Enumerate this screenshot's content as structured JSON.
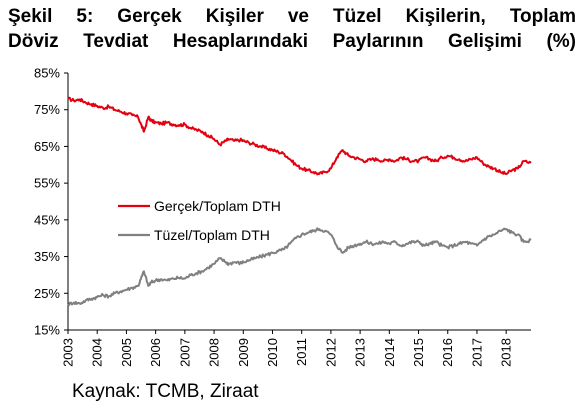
{
  "title_lines": [
    "Şekil 5: Gerçek Kişiler ve Tüzel Kişilerin, Toplam",
    "Döviz Tevdiat Hesaplarındaki Paylarının Gelişimi (%)"
  ],
  "source": "Kaynak: TCMB, Ziraat",
  "chart_data": {
    "type": "line",
    "title": "Şekil 5: Gerçek Kişiler ve Tüzel Kişilerin, Toplam Döviz Tevdiat Hesaplarındaki Paylarının Gelişimi (%)",
    "xlabel": "",
    "ylabel": "",
    "xlim": [
      2003,
      2018.85
    ],
    "ylim": [
      15,
      85
    ],
    "y_ticks": [
      15,
      25,
      35,
      45,
      55,
      65,
      75,
      85
    ],
    "y_tick_labels": [
      "15%",
      "25%",
      "35%",
      "45%",
      "55%",
      "65%",
      "75%",
      "85%"
    ],
    "x_ticks": [
      2003,
      2004,
      2005,
      2006,
      2007,
      2008,
      2009,
      2010,
      2011,
      2012,
      2013,
      2014,
      2015,
      2016,
      2017,
      2018
    ],
    "x_tick_labels": [
      "2003",
      "2004",
      "2005",
      "2006",
      "2007",
      "2008",
      "2009",
      "2010",
      "2011",
      "2012",
      "2013",
      "2014",
      "2015",
      "2016",
      "2017",
      "2018"
    ],
    "grid": false,
    "legend_position": "middle-left",
    "series": [
      {
        "name": "Gerçek/Toplam DTH",
        "color": "#e3000f",
        "x": [
          2003.0,
          2003.2,
          2003.4,
          2003.6,
          2003.8,
          2004.0,
          2004.2,
          2004.4,
          2004.6,
          2004.8,
          2005.0,
          2005.2,
          2005.4,
          2005.5,
          2005.6,
          2005.75,
          2005.85,
          2006.0,
          2006.2,
          2006.4,
          2006.6,
          2006.8,
          2007.0,
          2007.2,
          2007.4,
          2007.6,
          2007.8,
          2008.0,
          2008.2,
          2008.4,
          2008.5,
          2008.7,
          2008.9,
          2009.0,
          2009.2,
          2009.4,
          2009.6,
          2009.8,
          2010.0,
          2010.2,
          2010.4,
          2010.6,
          2010.8,
          2011.0,
          2011.2,
          2011.4,
          2011.6,
          2011.8,
          2012.0,
          2012.2,
          2012.4,
          2012.6,
          2012.8,
          2013.0,
          2013.2,
          2013.4,
          2013.6,
          2013.8,
          2014.0,
          2014.2,
          2014.4,
          2014.6,
          2014.8,
          2015.0,
          2015.2,
          2015.4,
          2015.6,
          2015.8,
          2016.0,
          2016.2,
          2016.4,
          2016.6,
          2016.8,
          2017.0,
          2017.2,
          2017.4,
          2017.6,
          2017.8,
          2018.0,
          2018.2,
          2018.4,
          2018.6,
          2018.85
        ],
        "values": [
          78,
          77.5,
          77.8,
          77,
          76.5,
          76,
          75.5,
          75.8,
          75,
          74.5,
          74,
          73.5,
          73,
          71,
          69,
          73,
          72,
          71.5,
          71.2,
          71.5,
          71,
          70.8,
          71,
          70,
          69.5,
          69,
          68,
          67,
          65.5,
          66.5,
          67,
          66.5,
          66.8,
          66.5,
          66,
          65.5,
          65,
          64.5,
          64,
          63.5,
          63,
          61.5,
          60,
          59,
          58.5,
          58,
          57.5,
          58,
          59,
          62,
          64,
          62.5,
          62,
          61.5,
          61,
          61.5,
          61.5,
          61,
          61.5,
          61,
          62,
          61.5,
          61,
          61,
          62,
          61.5,
          61,
          62,
          62.5,
          62,
          61.5,
          61,
          61.5,
          62,
          60.5,
          59.5,
          59,
          58,
          57.5,
          58.5,
          59,
          61,
          60.5
        ]
      },
      {
        "name": "Tüzel/Toplam DTH",
        "color": "#808080",
        "x": [
          2003.0,
          2003.2,
          2003.4,
          2003.6,
          2003.8,
          2004.0,
          2004.2,
          2004.4,
          2004.6,
          2004.8,
          2005.0,
          2005.2,
          2005.4,
          2005.5,
          2005.6,
          2005.75,
          2005.85,
          2006.0,
          2006.2,
          2006.4,
          2006.6,
          2006.8,
          2007.0,
          2007.2,
          2007.4,
          2007.6,
          2007.8,
          2008.0,
          2008.2,
          2008.4,
          2008.5,
          2008.7,
          2008.9,
          2009.0,
          2009.2,
          2009.4,
          2009.6,
          2009.8,
          2010.0,
          2010.2,
          2010.4,
          2010.6,
          2010.8,
          2011.0,
          2011.2,
          2011.4,
          2011.6,
          2011.8,
          2012.0,
          2012.2,
          2012.4,
          2012.6,
          2012.8,
          2013.0,
          2013.2,
          2013.4,
          2013.6,
          2013.8,
          2014.0,
          2014.2,
          2014.4,
          2014.6,
          2014.8,
          2015.0,
          2015.2,
          2015.4,
          2015.6,
          2015.8,
          2016.0,
          2016.2,
          2016.4,
          2016.6,
          2016.8,
          2017.0,
          2017.2,
          2017.4,
          2017.6,
          2017.8,
          2018.0,
          2018.2,
          2018.4,
          2018.6,
          2018.85
        ],
        "values": [
          22,
          22.5,
          22.2,
          23,
          23.5,
          24,
          24.5,
          24.2,
          25,
          25.5,
          26,
          26.5,
          27,
          29,
          31,
          27,
          28,
          28.5,
          28.8,
          28.5,
          29,
          29.2,
          29,
          30,
          30.5,
          31,
          32,
          33,
          34.5,
          33.5,
          33,
          33.5,
          33.2,
          33.5,
          34,
          34.5,
          35,
          35.5,
          36,
          36.5,
          37,
          38.5,
          40,
          41,
          41.5,
          42,
          42.5,
          42,
          41,
          38,
          36,
          37.5,
          38,
          38.5,
          39,
          38.5,
          38.5,
          39,
          38.5,
          39,
          38,
          38.5,
          39,
          39,
          38,
          38.5,
          39,
          38,
          37.5,
          38,
          38.5,
          39,
          38.5,
          38,
          39.5,
          40.5,
          41,
          42,
          42.5,
          41.5,
          41,
          39,
          39.5
        ]
      }
    ]
  }
}
